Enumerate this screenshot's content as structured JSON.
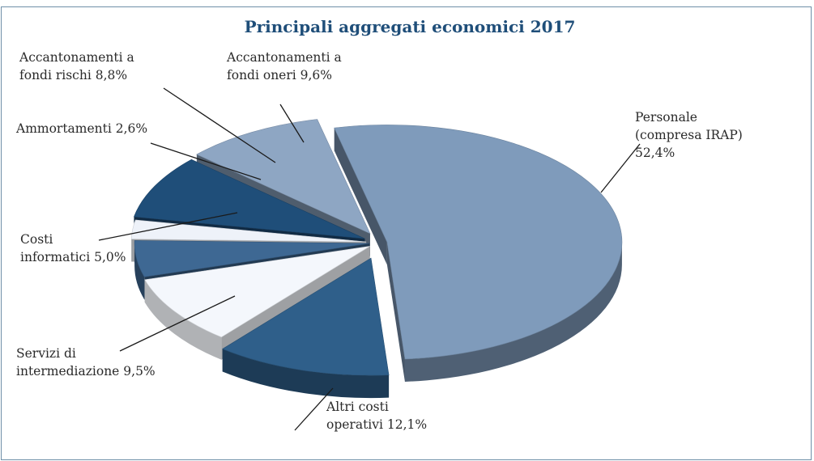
{
  "chart_data": {
    "type": "pie",
    "title": "Principali aggregati economici 2017",
    "slices": [
      {
        "label_lines": [
          "Personale",
          "(compresa IRAP)",
          "52,4%"
        ],
        "value": 52.4,
        "color": "#7f9bbb"
      },
      {
        "label_lines": [
          "Altri costi",
          "operativi 12,1%"
        ],
        "value": 12.1,
        "color": "#2f5f8a"
      },
      {
        "label_lines": [
          "Servizi di",
          "intermediazione 9,5%"
        ],
        "value": 9.5,
        "color": "#f4f7fc"
      },
      {
        "label_lines": [
          "Costi",
          "informatici 5,0%"
        ],
        "value": 5.0,
        "color": "#3e6893"
      },
      {
        "label_lines": [
          "Ammortamenti 2,6%"
        ],
        "value": 2.6,
        "color": "#eef2f9"
      },
      {
        "label_lines": [
          "Accantonamenti a",
          "fondi rischi 8,8%"
        ],
        "value": 8.8,
        "color": "#1f4e79"
      },
      {
        "label_lines": [
          "Accantonamenti a",
          "fondi oneri 9,6%"
        ],
        "value": 9.6,
        "color": "#8ea6c3"
      }
    ]
  }
}
